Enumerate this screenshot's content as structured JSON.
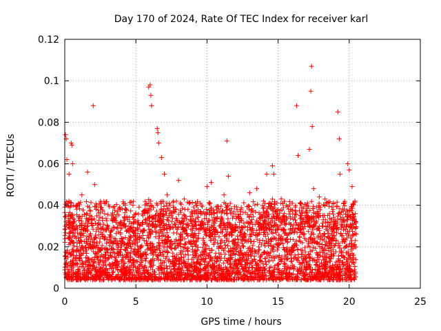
{
  "chart_data": {
    "type": "scatter",
    "title": "Day 170 of 2024, Rate Of TEC Index for receiver karl",
    "xlabel": "GPS time / hours",
    "ylabel": "ROTI / TECUs",
    "xlim": [
      0,
      25
    ],
    "ylim": [
      0,
      0.12
    ],
    "x_ticks": [
      0,
      5,
      10,
      15,
      20,
      25
    ],
    "y_ticks": [
      0,
      0.02,
      0.04,
      0.06,
      0.08,
      0.1,
      0.12
    ],
    "x_tick_labels": [
      "0",
      "5",
      "10",
      "15",
      "20",
      "25"
    ],
    "y_tick_labels": [
      "0",
      "0.02",
      "0.04",
      "0.06",
      "0.08",
      "0.1",
      "0.12"
    ],
    "grid": true,
    "marker": "+",
    "series": [
      {
        "name": "ROTI",
        "color": "#ff0000",
        "x": [
          0.05,
          0.1,
          0.15,
          0.3,
          0.45,
          0.5,
          0.55,
          1.2,
          1.6,
          2.0,
          2.1,
          2.2,
          3.5,
          3.7,
          5.1,
          5.5,
          5.8,
          5.9,
          6.0,
          6.05,
          6.1,
          6.5,
          6.55,
          6.6,
          6.8,
          7.0,
          7.2,
          7.4,
          8.0,
          8.4,
          9.3,
          10.0,
          10.3,
          10.5,
          11.2,
          11.4,
          11.5,
          12.2,
          13.0,
          13.5,
          14.2,
          14.6,
          14.7,
          15.0,
          16.0,
          16.3,
          16.4,
          17.0,
          17.2,
          17.3,
          17.35,
          17.4,
          17.5,
          17.9,
          18.3,
          19.2,
          19.3,
          19.35,
          19.6,
          19.9,
          20.0,
          20.2,
          20.4
        ],
        "y": [
          0.074,
          0.072,
          0.062,
          0.055,
          0.07,
          0.069,
          0.06,
          0.045,
          0.056,
          0.088,
          0.05,
          0.038,
          0.033,
          0.037,
          0.031,
          0.035,
          0.04,
          0.097,
          0.098,
          0.093,
          0.088,
          0.077,
          0.075,
          0.07,
          0.063,
          0.055,
          0.045,
          0.04,
          0.052,
          0.043,
          0.04,
          0.049,
          0.051,
          0.036,
          0.045,
          0.071,
          0.054,
          0.034,
          0.046,
          0.048,
          0.055,
          0.059,
          0.055,
          0.038,
          0.041,
          0.088,
          0.064,
          0.034,
          0.067,
          0.095,
          0.107,
          0.078,
          0.048,
          0.044,
          0.043,
          0.085,
          0.072,
          0.055,
          0.041,
          0.06,
          0.057,
          0.049,
          0.042
        ]
      }
    ]
  }
}
